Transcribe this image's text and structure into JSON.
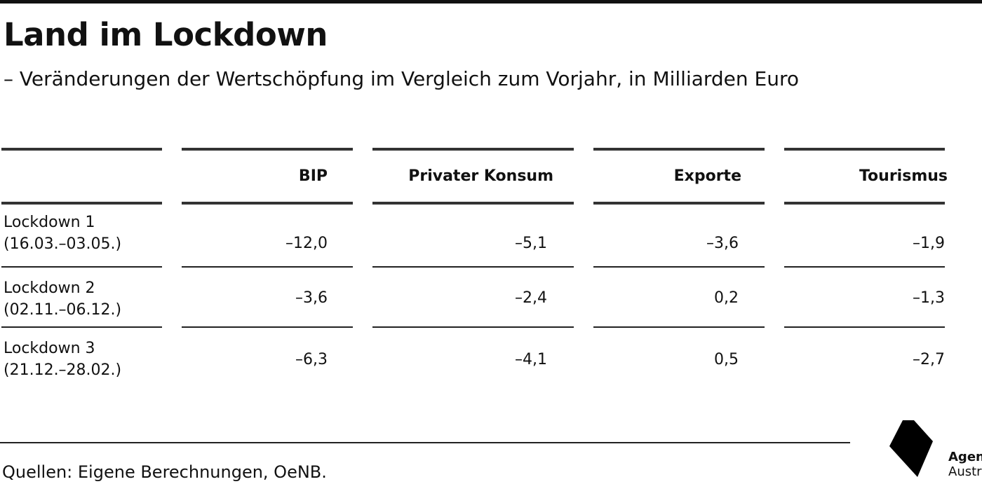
{
  "chart_data": {
    "type": "table",
    "title": "Land im Lockdown",
    "subtitle": "– Veränderungen der Wertschöpfung im Vergleich zum Vorjahr, in Milliarden Euro",
    "columns": [
      "BIP",
      "Privater Konsum",
      "Exporte",
      "Tourismus"
    ],
    "rows": [
      {
        "label_line1": "Lockdown 1",
        "label_line2": "(16.03.–03.05.)",
        "values": [
          "–12,0",
          "–5,1",
          "–3,6",
          "–1,9"
        ]
      },
      {
        "label_line1": "Lockdown 2",
        "label_line2": "(02.11.–06.12.)",
        "values": [
          "–3,6",
          "–2,4",
          "0,2",
          "–1,3"
        ]
      },
      {
        "label_line1": "Lockdown 3",
        "label_line2": "(21.12.–28.02.)",
        "values": [
          "–6,3",
          "–4,1",
          "0,5",
          "–2,7"
        ]
      }
    ]
  },
  "footer": {
    "source": "Quellen: Eigene Berechnungen, OeNB.",
    "logo_line1": "Agenda",
    "logo_line2": "Austria"
  }
}
